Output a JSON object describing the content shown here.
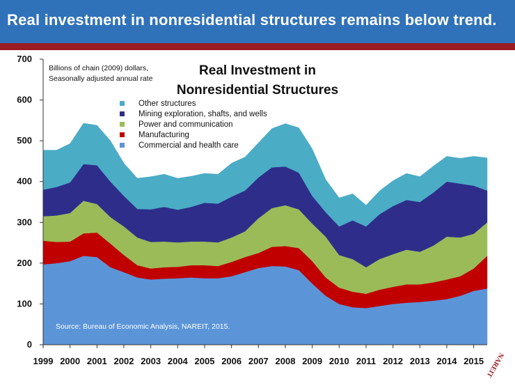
{
  "banner": {
    "headline": "Real investment in nonresidential structures remains below trend."
  },
  "colors": {
    "banner": "#2f72b9",
    "rule": "#9a1b22",
    "series": [
      "#5b95d8",
      "#c00000",
      "#9bbb59",
      "#2e2e8a",
      "#4bacc6"
    ]
  },
  "chart": {
    "unit_lines": [
      "Billions of chain (2009) dollars,",
      "Seasonally adjusted annual rate"
    ],
    "title_lines": [
      "Real Investment in",
      "Nonresidential Structures"
    ],
    "source": "Source: Bureau of Economic Analysis, NAREIT, 2015."
  },
  "logo": {
    "text": "NAREIT"
  },
  "chart_data": {
    "type": "area",
    "stacked": true,
    "ylim": [
      0,
      700
    ],
    "yticks": [
      "0",
      "100",
      "200",
      "300",
      "400",
      "500",
      "600",
      "700"
    ],
    "xticks": [
      "1999",
      "2000",
      "2001",
      "2002",
      "2003",
      "2004",
      "2005",
      "2006",
      "2007",
      "2008",
      "2009",
      "2010",
      "2011",
      "2012",
      "2013",
      "2014",
      "2015"
    ],
    "grid": false,
    "legend_position": "top-center",
    "x": [
      1999.0,
      1999.5,
      2000.0,
      2000.5,
      2001.0,
      2001.5,
      2002.0,
      2002.5,
      2003.0,
      2003.5,
      2004.0,
      2004.5,
      2005.0,
      2005.5,
      2006.0,
      2006.5,
      2007.0,
      2007.5,
      2008.0,
      2008.5,
      2009.0,
      2009.5,
      2010.0,
      2010.5,
      2011.0,
      2011.5,
      2012.0,
      2012.5,
      2013.0,
      2013.5,
      2014.0,
      2014.5,
      2015.0,
      2015.5
    ],
    "series": [
      {
        "name": "Commercial and health care",
        "values": [
          197,
          200,
          205,
          218,
          215,
          190,
          178,
          165,
          160,
          162,
          163,
          165,
          163,
          163,
          168,
          178,
          188,
          193,
          192,
          183,
          150,
          120,
          100,
          92,
          90,
          95,
          100,
          103,
          105,
          108,
          112,
          120,
          132,
          138
        ]
      },
      {
        "name": "Manufacturing",
        "values": [
          58,
          52,
          48,
          55,
          60,
          58,
          42,
          30,
          27,
          28,
          28,
          30,
          32,
          30,
          35,
          37,
          37,
          47,
          50,
          54,
          55,
          45,
          40,
          38,
          35,
          40,
          42,
          45,
          43,
          45,
          48,
          48,
          55,
          80
        ]
      },
      {
        "name": "Power and communication",
        "values": [
          60,
          65,
          70,
          80,
          70,
          65,
          70,
          68,
          65,
          63,
          60,
          58,
          58,
          58,
          60,
          63,
          85,
          95,
          100,
          95,
          92,
          100,
          80,
          80,
          65,
          75,
          80,
          85,
          80,
          90,
          105,
          95,
          85,
          82
        ]
      },
      {
        "name": "Mining exploration, shafts, and wells",
        "values": [
          65,
          70,
          75,
          90,
          95,
          87,
          75,
          70,
          80,
          85,
          80,
          85,
          95,
          95,
          100,
          100,
          100,
          100,
          95,
          90,
          68,
          60,
          70,
          95,
          100,
          110,
          118,
          122,
          122,
          130,
          135,
          132,
          118,
          78
        ]
      },
      {
        "name": "Other structures",
        "values": [
          97,
          90,
          95,
          100,
          98,
          100,
          80,
          75,
          80,
          80,
          77,
          75,
          72,
          72,
          82,
          82,
          85,
          95,
          105,
          110,
          115,
          80,
          70,
          65,
          52,
          57,
          62,
          65,
          62,
          65,
          62,
          62,
          72,
          80
        ]
      }
    ]
  }
}
